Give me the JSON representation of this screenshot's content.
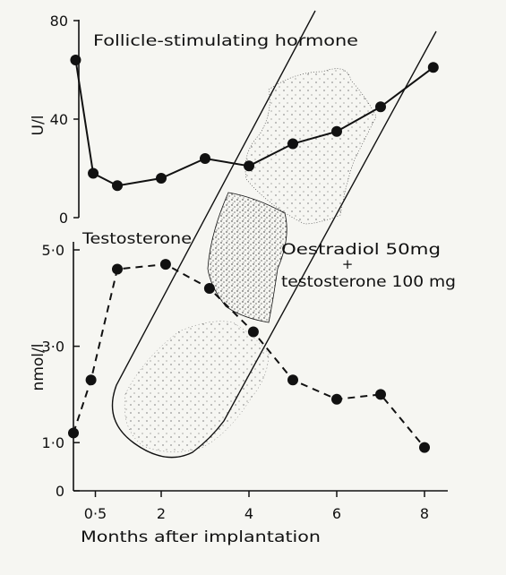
{
  "chart_data": [
    {
      "type": "line",
      "title": "Follicle-stimulating hormone",
      "xlabel": "Months after implantation",
      "ylabel": "U/l",
      "ylim": [
        0,
        80
      ],
      "yticks": [
        "0",
        "40",
        "80"
      ],
      "xticks": [
        "0·5",
        "2",
        "4",
        "6",
        "8"
      ],
      "xtick_values": [
        0.5,
        2,
        4,
        6,
        8
      ],
      "line_style": "solid",
      "marker": "filled-circle",
      "color": "#111111",
      "series": [
        {
          "x": [
            0.05,
            0.45,
            1.0,
            2.0,
            3.0,
            4.0,
            5.0,
            6.0,
            7.0,
            8.2
          ],
          "values": [
            64,
            18,
            13,
            16,
            24,
            21,
            30,
            35,
            45,
            61
          ]
        }
      ]
    },
    {
      "type": "line",
      "title": "Testosterone",
      "xlabel": "Months after implantation",
      "ylabel": "nmol/l",
      "ylim": [
        0,
        5.0
      ],
      "yticks": [
        "0",
        "1·0",
        "3·0",
        "5·0"
      ],
      "ytick_values": [
        0,
        1,
        3,
        5
      ],
      "xticks": [
        "0·5",
        "2",
        "4",
        "6",
        "8"
      ],
      "xtick_values": [
        0.5,
        2,
        4,
        6,
        8
      ],
      "line_style": "dashed",
      "marker": "filled-circle",
      "color": "#111111",
      "series": [
        {
          "x": [
            0.0,
            0.4,
            1.0,
            2.1,
            3.1,
            4.1,
            5.0,
            6.0,
            7.0,
            8.0
          ],
          "values": [
            1.2,
            2.3,
            4.6,
            4.7,
            4.2,
            3.3,
            2.3,
            1.9,
            2.0,
            0.9
          ]
        }
      ]
    }
  ],
  "annotation": {
    "line1": "Oestradiol 50mg",
    "plus": "+",
    "line2": "testosterone 100 mg"
  }
}
